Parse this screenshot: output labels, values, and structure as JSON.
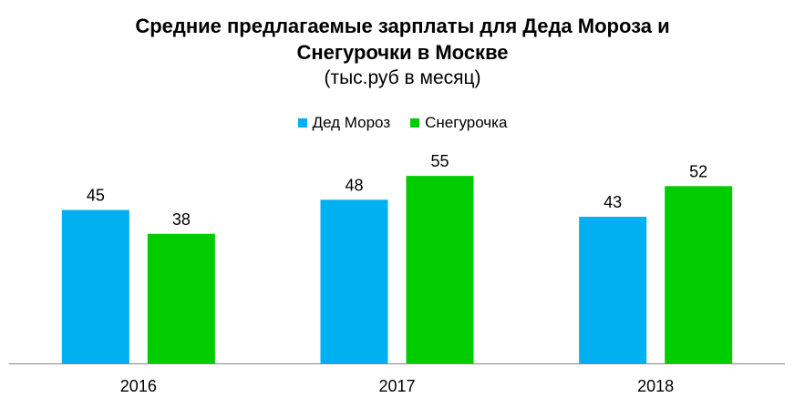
{
  "chart_data": {
    "type": "bar",
    "title_lines": [
      "Средние предлагаемые зарплаты для Деда Мороза и",
      "Снегурочки в Москве"
    ],
    "subtitle": "(тыс.руб в месяц)",
    "xlabel": "",
    "ylabel": "",
    "categories": [
      "2016",
      "2017",
      "2018"
    ],
    "series": [
      {
        "name": "Дед Мороз",
        "color": "#00B0F0",
        "values": [
          45,
          48,
          43
        ]
      },
      {
        "name": "Снегурочка",
        "color": "#00CC00",
        "values": [
          38,
          55,
          52
        ]
      }
    ],
    "ylim": [
      0,
      65
    ],
    "grid": false,
    "legend": "top-center",
    "data_labels": true
  }
}
